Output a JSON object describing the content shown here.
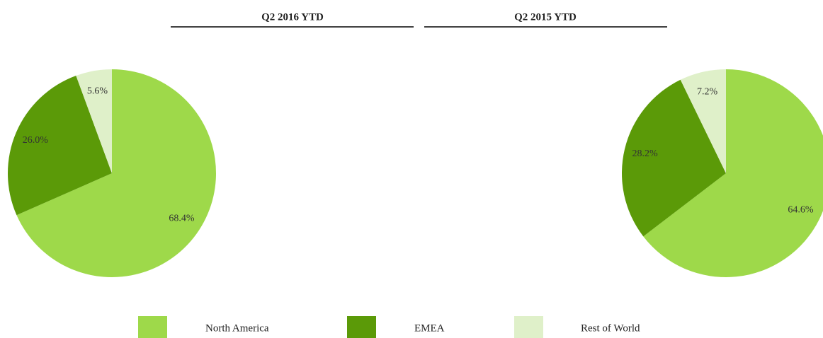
{
  "chart_data": [
    {
      "type": "pie",
      "title": "Q2 2016 YTD",
      "values": [
        68.4,
        26.0,
        5.6
      ],
      "value_labels": [
        "68.4%",
        "26.0%",
        "5.6%"
      ]
    },
    {
      "type": "pie",
      "title": "Q2 2015 YTD",
      "values": [
        64.6,
        28.2,
        7.2
      ],
      "value_labels": [
        "64.6%",
        "28.2%",
        "7.2%"
      ]
    }
  ],
  "legend": {
    "labels": [
      "North America",
      "EMEA",
      "Rest of World"
    ],
    "colors": [
      "#9ed94a",
      "#5b9a08",
      "#dff0c9"
    ]
  }
}
